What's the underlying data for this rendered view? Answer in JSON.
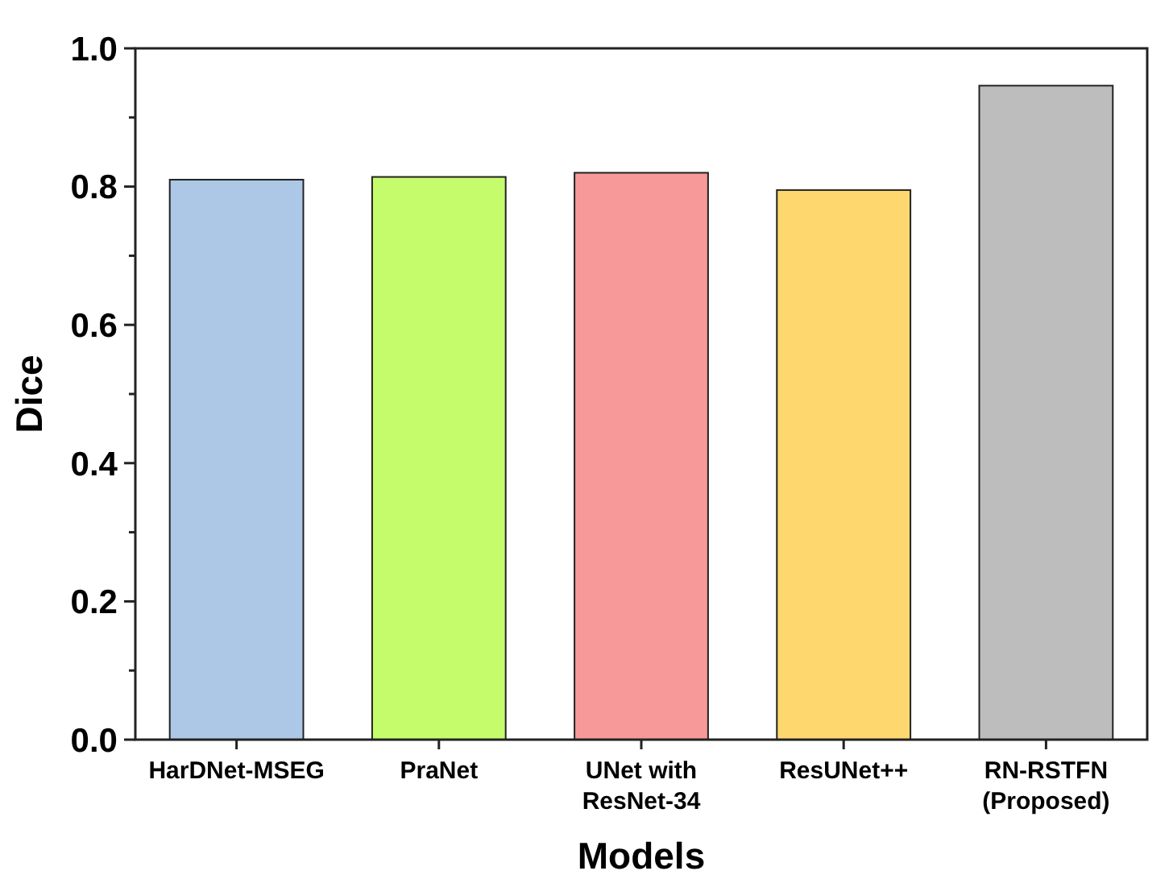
{
  "chart_data": {
    "type": "bar",
    "xlabel": "Models",
    "ylabel": "Dice",
    "categories": [
      "HarDNet-MSEG",
      "PraNet",
      "UNet with\nResNet-34",
      "ResUNet++",
      "RN-RSTFN\n(Proposed)"
    ],
    "values": [
      0.81,
      0.814,
      0.82,
      0.795,
      0.946
    ],
    "colors": [
      "#adc8e6",
      "#c4fc6c",
      "#f79999",
      "#fed86f",
      "#bdbdbd"
    ],
    "ylim": [
      0,
      1
    ],
    "yticks": [
      {
        "value": 0,
        "label": "0.0"
      },
      {
        "value": 0.1,
        "label": null
      },
      {
        "value": 0.2,
        "label": "0.2"
      },
      {
        "value": 0.3,
        "label": null
      },
      {
        "value": 0.4,
        "label": "0.4"
      },
      {
        "value": 0.5,
        "label": null
      },
      {
        "value": 0.6,
        "label": "0.6"
      },
      {
        "value": 0.7,
        "label": null
      },
      {
        "value": 0.8,
        "label": "0.8"
      },
      {
        "value": 0.9,
        "label": null
      },
      {
        "value": 1,
        "label": "1.0"
      }
    ],
    "grid": false
  }
}
